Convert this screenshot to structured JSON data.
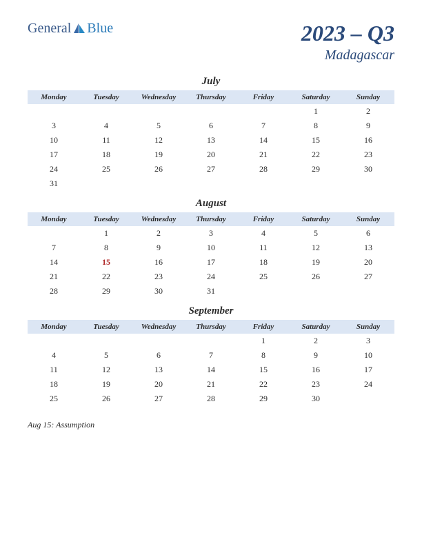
{
  "logo": {
    "general": "General",
    "blue": "Blue"
  },
  "title": {
    "main": "2023 – Q3",
    "sub": "Madagascar"
  },
  "weekdays": [
    "Monday",
    "Tuesday",
    "Wednesday",
    "Thursday",
    "Friday",
    "Saturday",
    "Sunday"
  ],
  "header_bg": "#dce6f4",
  "accent_color": "#2b4a7a",
  "holiday_color": "#b02a2a",
  "months": [
    {
      "name": "July",
      "weeks": [
        [
          "",
          "",
          "",
          "",
          "",
          "1",
          "2"
        ],
        [
          "3",
          "4",
          "5",
          "6",
          "7",
          "8",
          "9"
        ],
        [
          "10",
          "11",
          "12",
          "13",
          "14",
          "15",
          "16"
        ],
        [
          "17",
          "18",
          "19",
          "20",
          "21",
          "22",
          "23"
        ],
        [
          "24",
          "25",
          "26",
          "27",
          "28",
          "29",
          "30"
        ],
        [
          "31",
          "",
          "",
          "",
          "",
          "",
          ""
        ]
      ],
      "holidays": []
    },
    {
      "name": "August",
      "weeks": [
        [
          "",
          "1",
          "2",
          "3",
          "4",
          "5",
          "6"
        ],
        [
          "7",
          "8",
          "9",
          "10",
          "11",
          "12",
          "13"
        ],
        [
          "14",
          "15",
          "16",
          "17",
          "18",
          "19",
          "20"
        ],
        [
          "21",
          "22",
          "23",
          "24",
          "25",
          "26",
          "27"
        ],
        [
          "28",
          "29",
          "30",
          "31",
          "",
          "",
          ""
        ]
      ],
      "holidays": [
        "15"
      ]
    },
    {
      "name": "September",
      "weeks": [
        [
          "",
          "",
          "",
          "",
          "1",
          "2",
          "3"
        ],
        [
          "4",
          "5",
          "6",
          "7",
          "8",
          "9",
          "10"
        ],
        [
          "11",
          "12",
          "13",
          "14",
          "15",
          "16",
          "17"
        ],
        [
          "18",
          "19",
          "20",
          "21",
          "22",
          "23",
          "24"
        ],
        [
          "25",
          "26",
          "27",
          "28",
          "29",
          "30",
          ""
        ]
      ],
      "holidays": []
    }
  ],
  "notes": [
    "Aug 15: Assumption"
  ]
}
